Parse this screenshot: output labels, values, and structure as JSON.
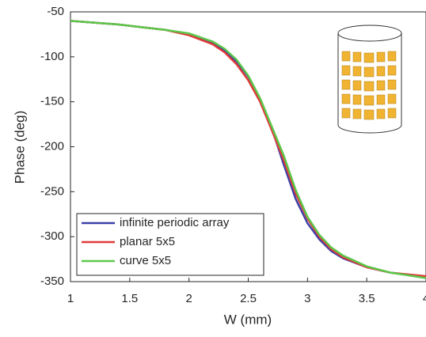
{
  "chart_data": {
    "type": "line",
    "x_label": "W (mm)",
    "y_label": "Phase (deg)",
    "x": [
      1,
      1.2,
      1.4,
      1.6,
      1.8,
      2.0,
      2.2,
      2.3,
      2.4,
      2.5,
      2.6,
      2.7,
      2.8,
      2.9,
      3.0,
      3.1,
      3.2,
      3.3,
      3.5,
      3.7,
      4.0
    ],
    "series": [
      {
        "name": "infinite periodic array",
        "color": "#3b3fa8",
        "values": [
          -60,
          -62,
          -64,
          -67,
          -70,
          -75,
          -85,
          -93,
          -105,
          -122,
          -147,
          -180,
          -220,
          -258,
          -285,
          -303,
          -316,
          -324,
          -334,
          -340,
          -345
        ]
      },
      {
        "name": "planar 5x5",
        "color": "#e03a3a",
        "values": [
          -60,
          -62,
          -64,
          -67,
          -70,
          -76,
          -86,
          -95,
          -108,
          -126,
          -150,
          -182,
          -215,
          -252,
          -280,
          -300,
          -314,
          -323,
          -334,
          -340,
          -344
        ]
      },
      {
        "name": "curve 5x5",
        "color": "#5cc84a",
        "values": [
          -60,
          -62,
          -64,
          -67,
          -70,
          -74,
          -83,
          -91,
          -103,
          -121,
          -146,
          -178,
          -210,
          -248,
          -278,
          -298,
          -312,
          -321,
          -333,
          -340,
          -346
        ]
      }
    ],
    "xlim": [
      1,
      4
    ],
    "xticks": [
      1,
      1.5,
      2,
      2.5,
      3,
      3.5,
      4
    ],
    "ylim": [
      -350,
      -50
    ],
    "yticks": [
      -350,
      -300,
      -250,
      -200,
      -150,
      -100,
      -50
    ],
    "grid": false,
    "legend": "lower left"
  }
}
